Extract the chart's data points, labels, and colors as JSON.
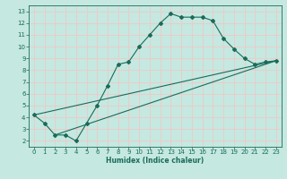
{
  "xlabel": "Humidex (Indice chaleur)",
  "bg_color": "#c5e8e0",
  "grid_color": "#f0c8c8",
  "line_color": "#1a6b5a",
  "spine_color": "#1a6b5a",
  "xlim": [
    -0.5,
    23.5
  ],
  "ylim": [
    1.5,
    13.5
  ],
  "xticks": [
    0,
    1,
    2,
    3,
    4,
    5,
    6,
    7,
    8,
    9,
    10,
    11,
    12,
    13,
    14,
    15,
    16,
    17,
    18,
    19,
    20,
    21,
    22,
    23
  ],
  "yticks": [
    2,
    3,
    4,
    5,
    6,
    7,
    8,
    9,
    10,
    11,
    12,
    13
  ],
  "line1_x": [
    0,
    1,
    2,
    3,
    4,
    5,
    6,
    7,
    8,
    9,
    10,
    11,
    12,
    13,
    14,
    15,
    16,
    17,
    18,
    19,
    20,
    21,
    22,
    23
  ],
  "line1_y": [
    4.2,
    3.5,
    2.5,
    2.5,
    2.0,
    3.5,
    5.0,
    6.7,
    8.5,
    8.7,
    10.0,
    11.0,
    12.0,
    12.8,
    12.5,
    12.5,
    12.5,
    12.2,
    10.7,
    9.8,
    9.0,
    8.5,
    8.7,
    8.8
  ],
  "line2_x": [
    0,
    23
  ],
  "line2_y": [
    4.2,
    8.8
  ],
  "line3_x": [
    2,
    23
  ],
  "line3_y": [
    2.5,
    8.8
  ],
  "tick_fontsize": 5.0,
  "xlabel_fontsize": 5.5,
  "tick_color": "#1a6b5a"
}
